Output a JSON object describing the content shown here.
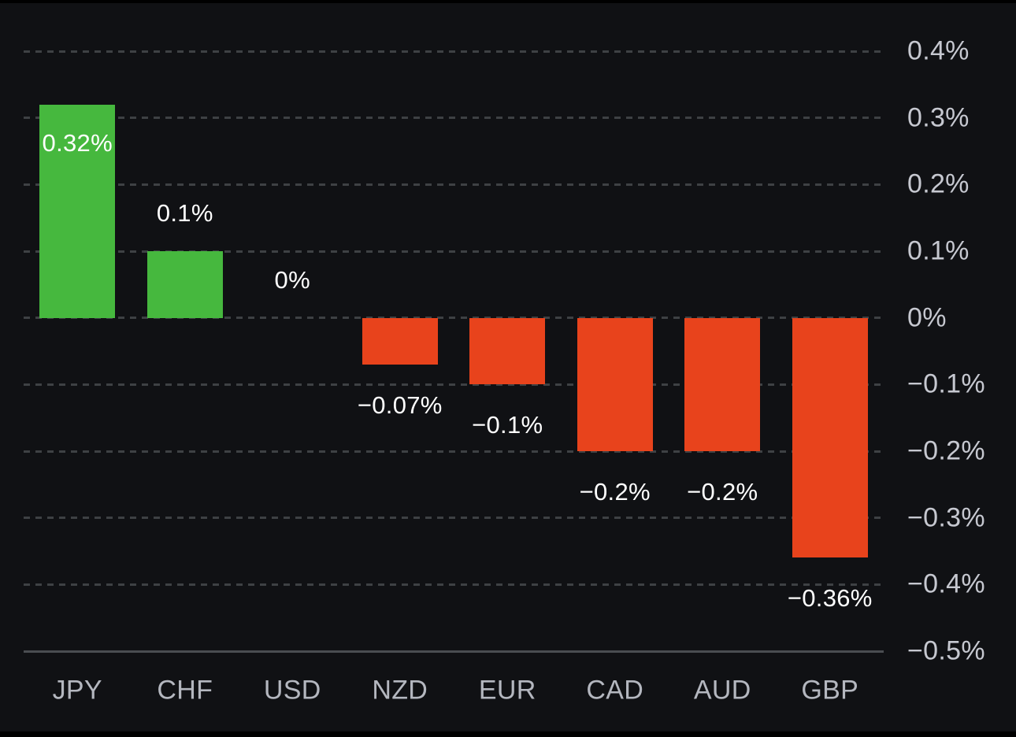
{
  "chart_data": {
    "type": "bar",
    "title": "",
    "xlabel": "",
    "ylabel": "",
    "categories": [
      "JPY",
      "CHF",
      "USD",
      "NZD",
      "EUR",
      "CAD",
      "AUD",
      "GBP"
    ],
    "values": [
      0.32,
      0.1,
      0,
      -0.07,
      -0.1,
      -0.2,
      -0.2,
      -0.36
    ],
    "value_labels": [
      "0.32%",
      "0.1%",
      "0%",
      "−0.07%",
      "−0.1%",
      "−0.2%",
      "−0.2%",
      "−0.36%"
    ],
    "value_label_placement": [
      "inside",
      "above",
      "above",
      "below",
      "below",
      "below",
      "below",
      "below"
    ],
    "ylim": [
      -0.5,
      0.4
    ],
    "yticks": [
      0.4,
      0.3,
      0.2,
      0.1,
      0,
      -0.1,
      -0.2,
      -0.3,
      -0.4,
      -0.5
    ],
    "ytick_labels": [
      "0.4%",
      "0.3%",
      "0.2%",
      "0.1%",
      "0%",
      "−0.1%",
      "−0.2%",
      "−0.3%",
      "−0.4%",
      "−0.5%"
    ],
    "grid": "horizontal-dashed",
    "legend": "none",
    "colors": {
      "positive_bar": "#46b83e",
      "negative_bar": "#e8431c"
    }
  },
  "colors": {
    "background": "#101114",
    "gridline": "#3e4144",
    "baseline": "#4a4d51",
    "ytick_label": "#c6c8d0",
    "category_label": "#b4b7bf",
    "value_label": "#ffffff",
    "frame_edge": "#000000"
  }
}
